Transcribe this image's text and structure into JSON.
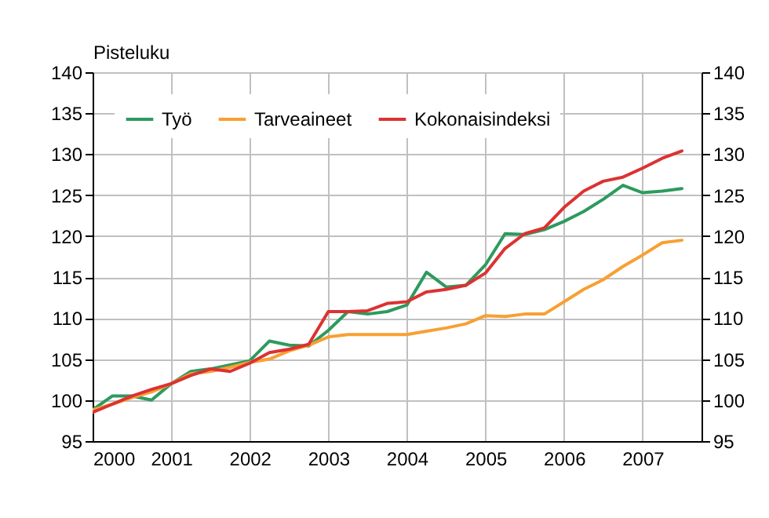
{
  "chart_data": {
    "type": "line",
    "ylabel": "Pisteluku",
    "x": [
      2000,
      2000.25,
      2000.5,
      2000.75,
      2001,
      2001.25,
      2001.5,
      2001.75,
      2002,
      2002.25,
      2002.5,
      2002.75,
      2003,
      2003.25,
      2003.5,
      2003.75,
      2004,
      2004.25,
      2004.5,
      2004.75,
      2005,
      2005.25,
      2005.5,
      2005.75,
      2006,
      2006.25,
      2006.5,
      2006.75,
      2007,
      2007.25,
      2007.5
    ],
    "series": [
      {
        "name": "Työ",
        "color": "#2e9a5e",
        "values": [
          98.8,
          100.5,
          100.5,
          100,
          102,
          103.5,
          103.8,
          104.3,
          104.8,
          107.2,
          106.7,
          106.6,
          108.5,
          110.8,
          110.5,
          110.8,
          111.6,
          115.6,
          113.8,
          114,
          116.5,
          120.3,
          120.2,
          120.8,
          121.8,
          123,
          124.5,
          126.2,
          125.3,
          125.5,
          125.8
        ]
      },
      {
        "name": "Tarveaineet",
        "color": "#f7a033",
        "values": [
          98.8,
          99.5,
          100.3,
          101,
          102,
          103.2,
          103.5,
          104,
          104.6,
          105,
          106,
          106.7,
          107.7,
          108,
          108,
          108,
          108,
          108.4,
          108.8,
          109.3,
          110.3,
          110.2,
          110.5,
          110.5,
          112,
          113.5,
          114.7,
          116.3,
          117.7,
          119.2,
          119.5
        ]
      },
      {
        "name": "Kokonaisindeksi",
        "color": "#dc3232",
        "values": [
          98.5,
          99.5,
          100.5,
          101.3,
          102,
          103,
          103.8,
          103.5,
          104.5,
          105.8,
          106.2,
          106.8,
          110.8,
          110.8,
          110.9,
          111.8,
          112,
          113.2,
          113.5,
          114,
          115.5,
          118.5,
          120.3,
          121,
          123.5,
          125.5,
          126.7,
          127.2,
          128.3,
          129.5,
          130.4
        ]
      }
    ],
    "xlim": [
      2000,
      2007.75
    ],
    "xticks": [
      2000,
      2001,
      2002,
      2003,
      2004,
      2005,
      2006,
      2007
    ],
    "ylim": [
      95,
      140
    ],
    "yticks": [
      95,
      100,
      105,
      110,
      115,
      120,
      125,
      130,
      135,
      140
    ],
    "y2lim": [
      95,
      140
    ],
    "y2ticks": [
      95,
      100,
      105,
      110,
      115,
      120,
      125,
      130,
      135,
      140
    ],
    "grid": true,
    "legend": "top left",
    "line_style": "solid",
    "marker": "none"
  }
}
